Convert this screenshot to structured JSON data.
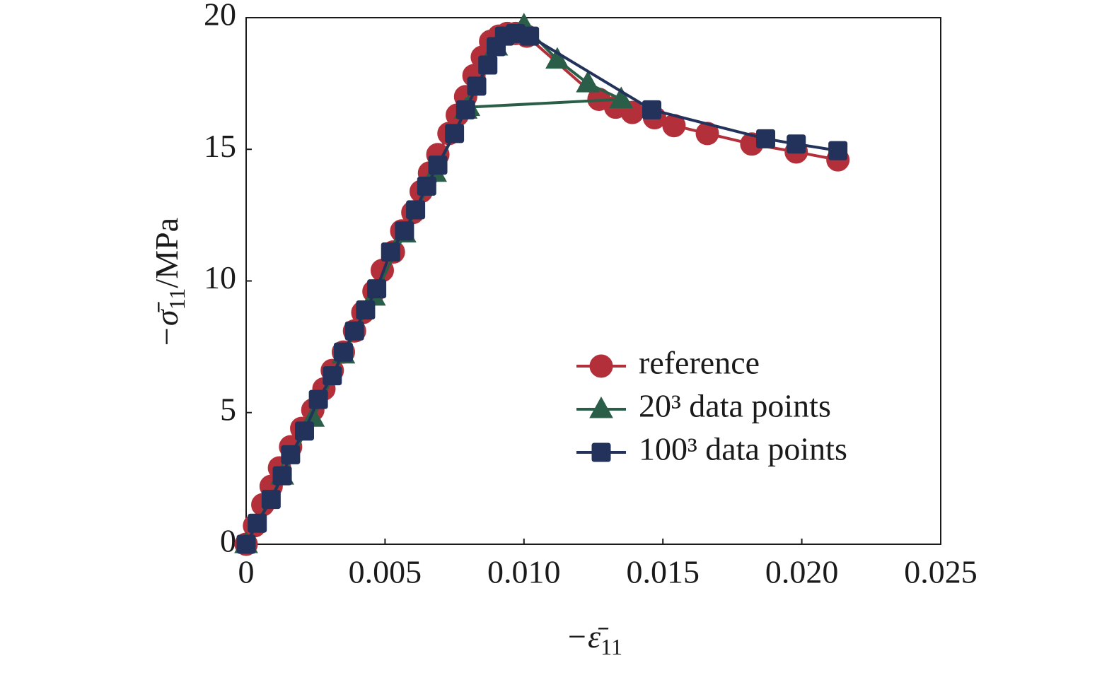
{
  "chart_data": {
    "type": "line",
    "x_label": {
      "symbol": "−ε̄",
      "subscript": "11"
    },
    "y_label": {
      "symbol": "−σ̄",
      "subscript": "11",
      "unit": "/MPa"
    },
    "xlim": [
      0,
      0.025
    ],
    "ylim": [
      0,
      20
    ],
    "xticks": [
      0,
      0.005,
      {
        "value": 0.01,
        "label": "0.010"
      },
      0.015,
      {
        "value": 0.02,
        "label": "0.020"
      },
      0.025
    ],
    "yticks": [
      0,
      5,
      10,
      15,
      20
    ],
    "legend": "lower right",
    "series": [
      {
        "name": "reference",
        "color": "#b3303a",
        "marker": "circle",
        "x": [
          0,
          0.0003,
          0.0006,
          0.0009,
          0.0012,
          0.0016,
          0.002,
          0.0024,
          0.0028,
          0.0031,
          0.0035,
          0.0039,
          0.0042,
          0.0046,
          0.0049,
          0.0053,
          0.0056,
          0.006,
          0.0063,
          0.0066,
          0.0069,
          0.0073,
          0.0076,
          0.0079,
          0.0082,
          0.0085,
          0.0088,
          0.0091,
          0.0094,
          0.0097,
          0.0101,
          0.0127,
          0.0133,
          0.0139,
          0.0147,
          0.0154,
          0.0166,
          0.0182,
          0.0198,
          0.0213
        ],
        "values": [
          0,
          0.7,
          1.5,
          2.2,
          2.9,
          3.7,
          4.4,
          5.1,
          5.9,
          6.6,
          7.3,
          8.1,
          8.8,
          9.6,
          10.4,
          11.1,
          11.9,
          12.6,
          13.4,
          14.1,
          14.8,
          15.6,
          16.3,
          17.0,
          17.8,
          18.5,
          19.1,
          19.3,
          19.4,
          19.4,
          19.3,
          16.9,
          16.6,
          16.4,
          16.2,
          15.9,
          15.6,
          15.2,
          14.9,
          14.6
        ]
      },
      {
        "name": "20³ data points",
        "color": "#2b5e48",
        "marker": "triangle",
        "x": [
          0,
          0.0013,
          0.0024,
          0.0035,
          0.0046,
          0.0057,
          0.0068,
          0.0079,
          0.009,
          0.01,
          0.0112,
          0.0123,
          0.0135,
          0.008
        ],
        "values": [
          0,
          2.6,
          4.8,
          7.2,
          9.4,
          11.8,
          14.1,
          16.5,
          18.9,
          19.7,
          18.4,
          17.5,
          16.9,
          16.6
        ]
      },
      {
        "name": "100³ data points",
        "color": "#22325a",
        "marker": "square",
        "x": [
          0,
          0.0004,
          0.0009,
          0.0013,
          0.0016,
          0.0021,
          0.0026,
          0.0031,
          0.0035,
          0.0039,
          0.0043,
          0.0047,
          0.0052,
          0.0057,
          0.0061,
          0.0065,
          0.0069,
          0.0075,
          0.0079,
          0.0083,
          0.0087,
          0.009,
          0.0093,
          0.0097,
          0.0102,
          0.0146,
          0.0187,
          0.0198,
          0.0213
        ],
        "values": [
          0,
          0.8,
          1.7,
          2.6,
          3.4,
          4.3,
          5.5,
          6.4,
          7.3,
          8.1,
          8.9,
          9.7,
          11.1,
          11.9,
          12.7,
          13.6,
          14.4,
          15.6,
          16.5,
          17.4,
          18.2,
          18.9,
          19.3,
          19.4,
          19.3,
          16.5,
          15.4,
          15.2,
          14.95
        ]
      }
    ]
  }
}
